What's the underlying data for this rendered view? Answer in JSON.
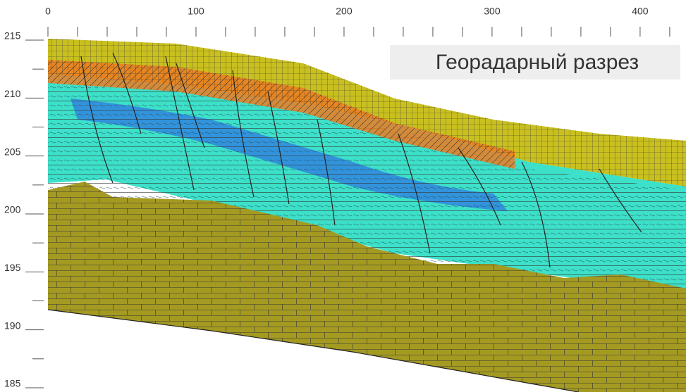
{
  "chart_data": {
    "type": "section",
    "title": "Георадарный разрез",
    "xlim": [
      0,
      431
    ],
    "xticks": [
      0,
      100,
      200,
      300,
      400
    ],
    "xminorticks": [
      20,
      40,
      60,
      80,
      120,
      140,
      160,
      180,
      220,
      240,
      260,
      280,
      320,
      340,
      360,
      380,
      420
    ],
    "ylim": [
      185,
      215
    ],
    "yticks": [
      185,
      190,
      195,
      200,
      205,
      210,
      215
    ],
    "yminorticks": [
      187.5,
      192.5,
      197.5,
      202.5,
      207.5,
      212.5
    ]
  }
}
